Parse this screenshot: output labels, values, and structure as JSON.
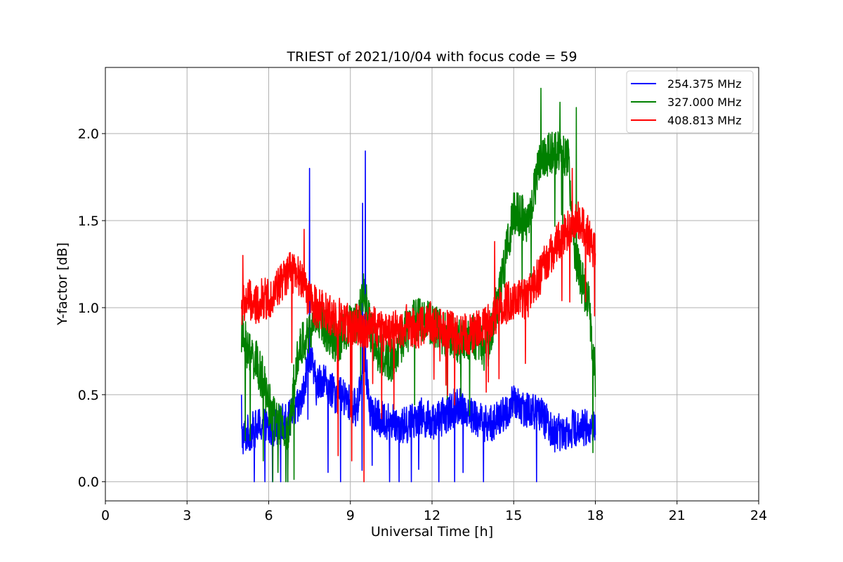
{
  "chart_data": {
    "type": "line",
    "title": "TRIEST of 2021/10/04 with focus code = 59",
    "xlabel": "Universal Time [h]",
    "ylabel": "Y-factor [dB]",
    "xlim": [
      0,
      24
    ],
    "ylim": [
      -0.11,
      2.38
    ],
    "xticks": [
      0,
      3,
      6,
      9,
      12,
      15,
      18,
      21,
      24
    ],
    "yticks": [
      0.0,
      0.5,
      1.0,
      1.5,
      2.0
    ],
    "ytick_labels": [
      "0.0",
      "0.5",
      "1.0",
      "1.5",
      "2.0"
    ],
    "grid": true,
    "legend_position": "top-right",
    "series": [
      {
        "name": "254.375 MHz",
        "color": "#0000ff",
        "x": [
          5.0,
          5.25,
          5.5,
          5.75,
          6.0,
          6.25,
          6.5,
          6.75,
          7.0,
          7.25,
          7.5,
          7.75,
          8.0,
          8.25,
          8.5,
          8.75,
          9.0,
          9.25,
          9.5,
          9.75,
          10.0,
          10.5,
          11.0,
          11.5,
          12.0,
          12.5,
          13.0,
          13.5,
          14.0,
          14.5,
          15.0,
          15.5,
          16.0,
          16.5,
          17.0,
          17.5,
          18.0
        ],
        "y": [
          0.25,
          0.28,
          0.3,
          0.33,
          0.3,
          0.32,
          0.34,
          0.36,
          0.4,
          0.48,
          0.75,
          0.55,
          0.6,
          0.52,
          0.5,
          0.48,
          0.45,
          0.42,
          0.75,
          0.4,
          0.36,
          0.35,
          0.32,
          0.38,
          0.35,
          0.38,
          0.45,
          0.38,
          0.33,
          0.36,
          0.45,
          0.42,
          0.38,
          0.28,
          0.3,
          0.32,
          0.3
        ],
        "spikes": [
          [
            7.5,
            1.8
          ],
          [
            9.55,
            1.9
          ],
          [
            9.45,
            1.6
          ],
          [
            5.0,
            0.5
          ]
        ]
      },
      {
        "name": "327.000 MHz",
        "color": "#008000",
        "x": [
          5.0,
          5.25,
          5.5,
          5.75,
          6.0,
          6.25,
          6.5,
          6.75,
          7.0,
          7.25,
          7.5,
          7.75,
          8.0,
          8.25,
          8.5,
          8.75,
          9.0,
          9.25,
          9.5,
          9.75,
          10.0,
          10.5,
          11.0,
          11.5,
          12.0,
          12.5,
          13.0,
          13.5,
          14.0,
          14.5,
          15.0,
          15.5,
          16.0,
          16.5,
          17.0,
          17.25,
          17.5,
          17.75,
          18.0
        ],
        "y": [
          0.85,
          0.75,
          0.7,
          0.6,
          0.45,
          0.35,
          0.3,
          0.25,
          0.7,
          0.8,
          0.85,
          0.95,
          0.9,
          0.85,
          0.8,
          0.85,
          0.9,
          0.9,
          1.1,
          0.85,
          0.75,
          0.7,
          0.85,
          0.95,
          0.9,
          0.85,
          0.8,
          0.85,
          0.75,
          1.1,
          1.55,
          1.5,
          1.85,
          1.9,
          1.85,
          1.3,
          1.15,
          1.05,
          0.6
        ],
        "spikes": [
          [
            16.0,
            2.26
          ],
          [
            16.7,
            2.18
          ],
          [
            17.3,
            2.15
          ],
          [
            6.7,
            0.0
          ],
          [
            5.8,
            0.12
          ]
        ]
      },
      {
        "name": "408.813 MHz",
        "color": "#ff0000",
        "x": [
          5.0,
          5.25,
          5.5,
          5.75,
          6.0,
          6.25,
          6.5,
          6.75,
          7.0,
          7.25,
          7.5,
          7.75,
          8.0,
          8.25,
          8.5,
          8.75,
          9.0,
          9.25,
          9.5,
          9.75,
          10.0,
          10.5,
          11.0,
          11.5,
          12.0,
          12.5,
          13.0,
          13.5,
          14.0,
          14.5,
          15.0,
          15.5,
          16.0,
          16.5,
          17.0,
          17.25,
          17.5,
          17.75,
          18.0
        ],
        "y": [
          1.0,
          1.05,
          1.0,
          1.05,
          1.05,
          1.1,
          1.15,
          1.2,
          1.2,
          1.15,
          1.05,
          1.0,
          0.98,
          0.95,
          0.95,
          0.92,
          0.9,
          0.9,
          0.88,
          0.9,
          0.88,
          0.85,
          0.9,
          0.88,
          0.92,
          0.88,
          0.85,
          0.85,
          0.9,
          1.0,
          1.05,
          1.05,
          1.2,
          1.35,
          1.45,
          1.5,
          1.5,
          1.4,
          1.3
        ],
        "spikes": [
          [
            9.5,
            0.0
          ],
          [
            9.05,
            0.12
          ],
          [
            8.55,
            0.15
          ],
          [
            5.05,
            1.3
          ],
          [
            7.3,
            1.45
          ],
          [
            14.3,
            1.38
          ],
          [
            17.15,
            1.8
          ]
        ]
      }
    ]
  }
}
